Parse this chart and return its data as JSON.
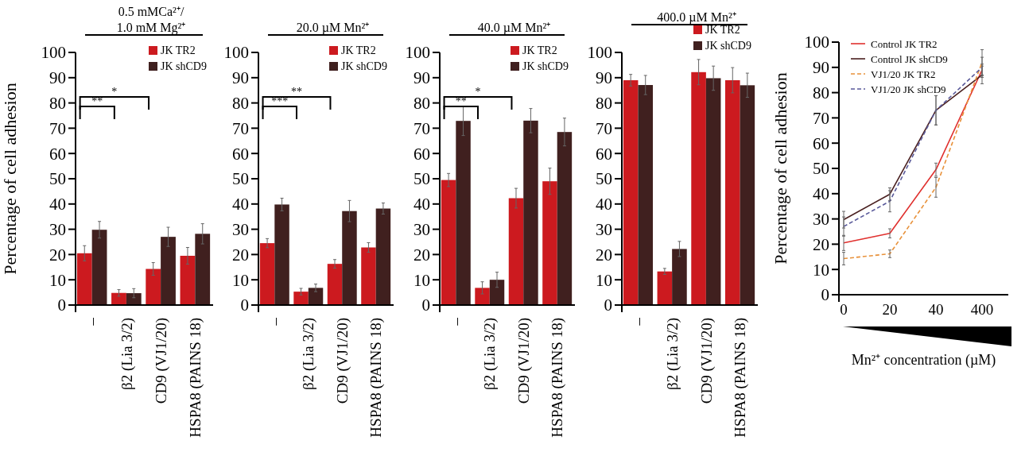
{
  "chart_data": [
    {
      "type": "bar",
      "title": "0.5 mMCa²⁺/\n1.0 mM Mg²⁺",
      "ylabel": "Percentage of cell adhesion",
      "categories": [
        "–",
        "β2 (Lia 3/2)",
        "CD9 (VJ1/20)",
        "HSPA8 (PAINS 18)"
      ],
      "ylim": [
        0,
        100
      ],
      "yticks": [
        0,
        10,
        20,
        30,
        40,
        50,
        60,
        70,
        80,
        90,
        100
      ],
      "legend": "top right",
      "annotations": [
        "**",
        "*"
      ],
      "series": [
        {
          "name": "JK TR2",
          "color": "#cc1a1f",
          "values": [
            20.5,
            4.8,
            14.3,
            19.5
          ],
          "errors": [
            3,
            1.3,
            2.5,
            3.3
          ]
        },
        {
          "name": "JK shCD9",
          "color": "#40201f",
          "values": [
            29.8,
            4.7,
            27,
            28.2
          ],
          "errors": [
            3.3,
            1.8,
            3.8,
            4
          ]
        }
      ]
    },
    {
      "type": "bar",
      "title": "20.0 µM Mn²⁺",
      "categories": [
        "–",
        "β2 (Lia 3/2)",
        "CD9 (VJ1/20)",
        "HSPA8 (PAINS 18)"
      ],
      "ylim": [
        0,
        100
      ],
      "yticks": [
        0,
        10,
        20,
        30,
        40,
        50,
        60,
        70,
        80,
        90,
        100
      ],
      "legend": "top right",
      "annotations": [
        "***",
        "**"
      ],
      "series": [
        {
          "name": "JK TR2",
          "color": "#cc1a1f",
          "values": [
            24.5,
            5.3,
            16.3,
            22.8
          ],
          "errors": [
            1.8,
            1.3,
            1.7,
            1.9
          ]
        },
        {
          "name": "JK shCD9",
          "color": "#40201f",
          "values": [
            39.8,
            6.8,
            37.2,
            38.2
          ],
          "errors": [
            2.5,
            1.5,
            4.2,
            2.2
          ]
        }
      ]
    },
    {
      "type": "bar",
      "title": "40.0 µM Mn²⁺",
      "categories": [
        "–",
        "β2 (Lia 3/2)",
        "CD9 (VJ1/20)",
        "HSPA8 (PAINS 18)"
      ],
      "ylim": [
        0,
        100
      ],
      "yticks": [
        0,
        10,
        20,
        30,
        40,
        50,
        60,
        70,
        80,
        90,
        100
      ],
      "legend": "top right",
      "annotations": [
        "**",
        "*"
      ],
      "series": [
        {
          "name": "JK TR2",
          "color": "#cc1a1f",
          "values": [
            49.5,
            6.8,
            42.3,
            49
          ],
          "errors": [
            2.6,
            2.4,
            3.9,
            5.2
          ]
        },
        {
          "name": "JK shCD9",
          "color": "#40201f",
          "values": [
            72.9,
            10,
            73,
            68.5
          ],
          "errors": [
            5.8,
            3,
            4.8,
            5.5
          ]
        }
      ]
    },
    {
      "type": "bar",
      "title": "400.0 µM Mn²⁺",
      "categories": [
        "–",
        "β2 (Lia 3/2)",
        "CD9 (VJ1/20)",
        "HSPA8 (PAINS 18)"
      ],
      "ylim": [
        0,
        100
      ],
      "yticks": [
        0,
        10,
        20,
        30,
        40,
        50,
        60,
        70,
        80,
        90,
        100
      ],
      "legend": "top right",
      "series": [
        {
          "name": "JK TR2",
          "color": "#cc1a1f",
          "values": [
            89,
            13.3,
            92.2,
            89
          ],
          "errors": [
            2.3,
            1.2,
            5,
            5
          ]
        },
        {
          "name": "JK shCD9",
          "color": "#40201f",
          "values": [
            87.1,
            22.2,
            89.8,
            87
          ],
          "errors": [
            3.8,
            3,
            4.8,
            4.8
          ]
        }
      ]
    },
    {
      "type": "line",
      "ylabel": "Percentage of cell adhesion",
      "xlabel": "Mn²⁺ concentration (µM)",
      "categories": [
        "0",
        "20",
        "40",
        "400"
      ],
      "ylim": [
        0,
        100
      ],
      "yticks": [
        0,
        10,
        20,
        30,
        40,
        50,
        60,
        70,
        80,
        90,
        100
      ],
      "legend": "top left",
      "series": [
        {
          "name": "Control JK TR2",
          "color": "#e0302e",
          "line_style": "solid",
          "values": [
            20.5,
            24.3,
            49.5,
            89
          ],
          "errors": [
            3,
            1.8,
            2.6,
            2.3
          ]
        },
        {
          "name": "Control JK shCD9",
          "color": "#4a2020",
          "line_style": "solid",
          "values": [
            29.7,
            39.8,
            73,
            87
          ],
          "errors": [
            3.3,
            2.5,
            5.8,
            3.5
          ]
        },
        {
          "name": "VJ1/20 JK TR2",
          "color": "#e8913a",
          "line_style": "dashed",
          "values": [
            14.3,
            16.2,
            42.5,
            92
          ],
          "errors": [
            2.5,
            1.5,
            3.9,
            5
          ]
        },
        {
          "name": "VJ1/20 JK shCD9",
          "color": "#5a5a9a",
          "line_style": "dashed",
          "values": [
            27,
            37,
            73,
            90
          ],
          "errors": [
            3.8,
            4.2,
            5.8,
            4
          ]
        }
      ]
    }
  ]
}
